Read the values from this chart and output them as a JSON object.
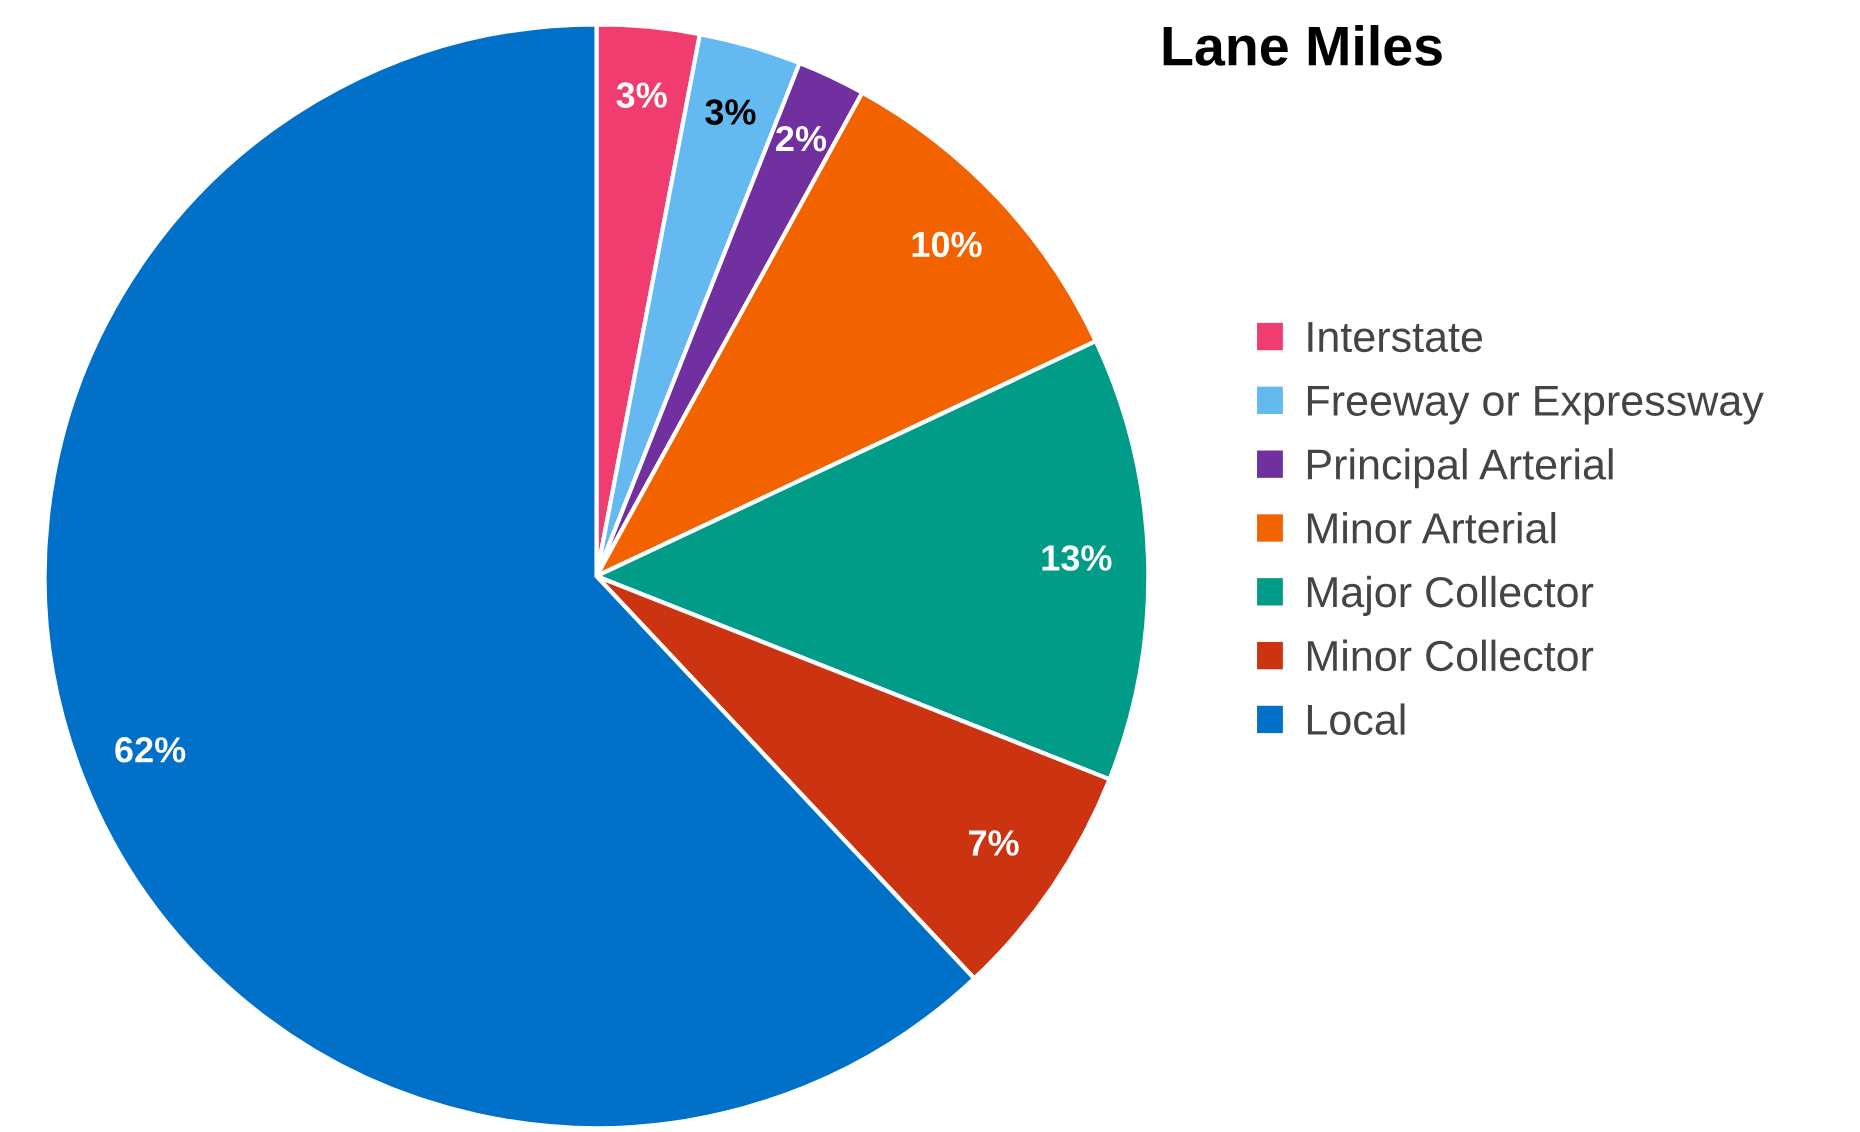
{
  "chart_data": {
    "type": "pie",
    "title": "Lane Miles",
    "categories": [
      "Interstate",
      "Freeway or Expressway",
      "Principal Arterial",
      "Minor Arterial",
      "Major Collector",
      "Minor Collector",
      "Local"
    ],
    "values": [
      3,
      3,
      2,
      10,
      13,
      7,
      62
    ],
    "colors": [
      "#f03c6e",
      "#64b9f0",
      "#7030a0",
      "#f26300",
      "#009c88",
      "#cc3311",
      "#0070c8"
    ],
    "value_labels": [
      "3%",
      "3%",
      "2%",
      "10%",
      "13%",
      "7%",
      "62%"
    ],
    "legend": "right"
  }
}
